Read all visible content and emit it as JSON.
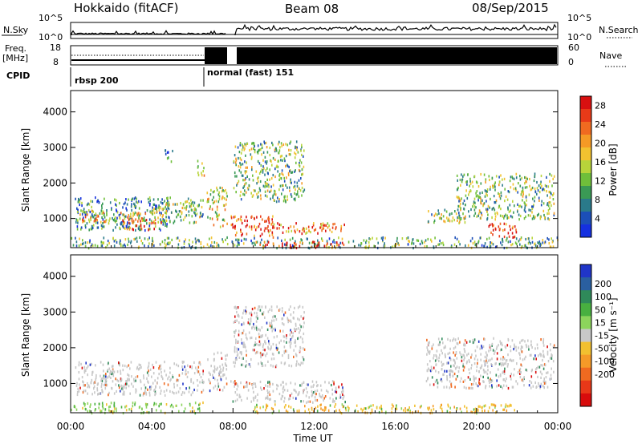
{
  "header": {
    "station": "Hokkaido (fitACF)",
    "beam": "Beam 08",
    "date": "08/Sep/2015"
  },
  "strip_labels": {
    "nsky": "N.Sky",
    "nsky_top": "10^5",
    "nsky_bottom": "10^0",
    "nsearch": "N.Search",
    "nsearch_top": "10^5",
    "nsearch_bottom": "10^0",
    "freq": "Freq.",
    "freq_unit": "[MHz]",
    "freq_top": "18",
    "freq_bottom": "8",
    "nave": "Nave",
    "nave_top": "60",
    "nave_bottom": "0",
    "cpid": "CPID",
    "mode1": "rbsp 200",
    "mode2": "normal (fast) 151"
  },
  "chart_data": [
    {
      "type": "heatmap",
      "title": "Power",
      "ylabel": "Slant Range [km]",
      "xlabel": "Time UT",
      "xlim": [
        "00:00",
        "24:00"
      ],
      "ylim": [
        180,
        4600
      ],
      "x_ticks": [
        "00:00",
        "04:00",
        "08:00",
        "12:00",
        "16:00",
        "20:00",
        "00:00"
      ],
      "y_ticks": [
        1000,
        2000,
        3000,
        4000
      ],
      "colorbar": {
        "label": "Power [dB]",
        "ticks": [
          4,
          8,
          12,
          16,
          20,
          24,
          28
        ],
        "range": [
          0,
          30
        ],
        "colors": [
          "#1530e0",
          "#1c4fb8",
          "#2a7a8a",
          "#3a9a55",
          "#6fbf3a",
          "#b8d43a",
          "#f2c230",
          "#f59a25",
          "#f06a20",
          "#e83a18",
          "#d81010"
        ]
      },
      "regions": [
        {
          "t": [
            0.2,
            4.9
          ],
          "r": [
            700,
            1650
          ],
          "level": 0.25
        },
        {
          "t": [
            0.3,
            4.0
          ],
          "r": [
            900,
            1250
          ],
          "level": 0.6
        },
        {
          "t": [
            2.5,
            4.5
          ],
          "r": [
            700,
            1000
          ],
          "level": 0.8
        },
        {
          "t": [
            4.0,
            6.5
          ],
          "r": [
            900,
            1500
          ],
          "level": 0.45
        },
        {
          "t": [
            5.5,
            6.5
          ],
          "r": [
            1100,
            1600
          ],
          "level": 0.35
        },
        {
          "t": [
            6.2,
            6.6
          ],
          "r": [
            2200,
            2700
          ],
          "level": 0.6
        },
        {
          "t": [
            4.6,
            5.0
          ],
          "r": [
            2600,
            3000
          ],
          "level": 0.2
        },
        {
          "t": [
            6.6,
            7.7
          ],
          "r": [
            800,
            1900
          ],
          "level": 0.55
        },
        {
          "t": [
            7.8,
            10.0
          ],
          "r": [
            500,
            1100
          ],
          "level": 0.85
        },
        {
          "t": [
            8.0,
            11.5
          ],
          "r": [
            1500,
            3200
          ],
          "level": 0.4
        },
        {
          "t": [
            9.5,
            12.5
          ],
          "r": [
            600,
            900
          ],
          "level": 0.75
        },
        {
          "t": [
            12.0,
            13.5
          ],
          "r": [
            650,
            900
          ],
          "level": 0.7
        },
        {
          "t": [
            17.5,
            19.5
          ],
          "r": [
            900,
            1300
          ],
          "level": 0.45
        },
        {
          "t": [
            19.0,
            23.8
          ],
          "r": [
            1000,
            2300
          ],
          "level": 0.4
        },
        {
          "t": [
            20.5,
            22.0
          ],
          "r": [
            500,
            900
          ],
          "level": 0.85
        },
        {
          "t": [
            0.0,
            24.0
          ],
          "r": [
            200,
            500
          ],
          "level": 0.35
        },
        {
          "t": [
            9.0,
            13.5
          ],
          "r": [
            200,
            380
          ],
          "level": 0.9
        }
      ]
    },
    {
      "type": "heatmap",
      "title": "Velocity",
      "ylabel": "Slant Range [km]",
      "xlabel": "Time UT",
      "xlim": [
        "00:00",
        "24:00"
      ],
      "ylim": [
        180,
        4600
      ],
      "x_ticks": [
        "00:00",
        "04:00",
        "08:00",
        "12:00",
        "16:00",
        "20:00",
        "00:00"
      ],
      "y_ticks": [
        1000,
        2000,
        3000,
        4000
      ],
      "colorbar": {
        "label": "Velocity [m s⁻¹]",
        "ticks": [
          200,
          100,
          50,
          15,
          -15,
          -50,
          -100,
          -200
        ],
        "colors": [
          "#2035c8",
          "#2a5fa0",
          "#2f8a5a",
          "#48b040",
          "#8cd45c",
          "#c8c8c8",
          "#f2c030",
          "#f59a28",
          "#f06a20",
          "#e83818",
          "#d80c0c"
        ]
      },
      "regions": [
        {
          "t": [
            0.2,
            6.6
          ],
          "r": [
            700,
            1650
          ],
          "level": 0.5
        },
        {
          "t": [
            6.6,
            7.7
          ],
          "r": [
            800,
            1900
          ],
          "level": 0.5
        },
        {
          "t": [
            7.8,
            13.5
          ],
          "r": [
            500,
            1100
          ],
          "level": 0.5
        },
        {
          "t": [
            8.0,
            11.5
          ],
          "r": [
            1500,
            3200
          ],
          "level": 0.5
        },
        {
          "t": [
            17.5,
            23.8
          ],
          "r": [
            900,
            2300
          ],
          "level": 0.5
        },
        {
          "t": [
            0.0,
            6.5
          ],
          "r": [
            200,
            500
          ],
          "level": 0.3
        },
        {
          "t": [
            9.0,
            22.0
          ],
          "r": [
            200,
            450
          ],
          "level": 0.7
        }
      ]
    }
  ]
}
